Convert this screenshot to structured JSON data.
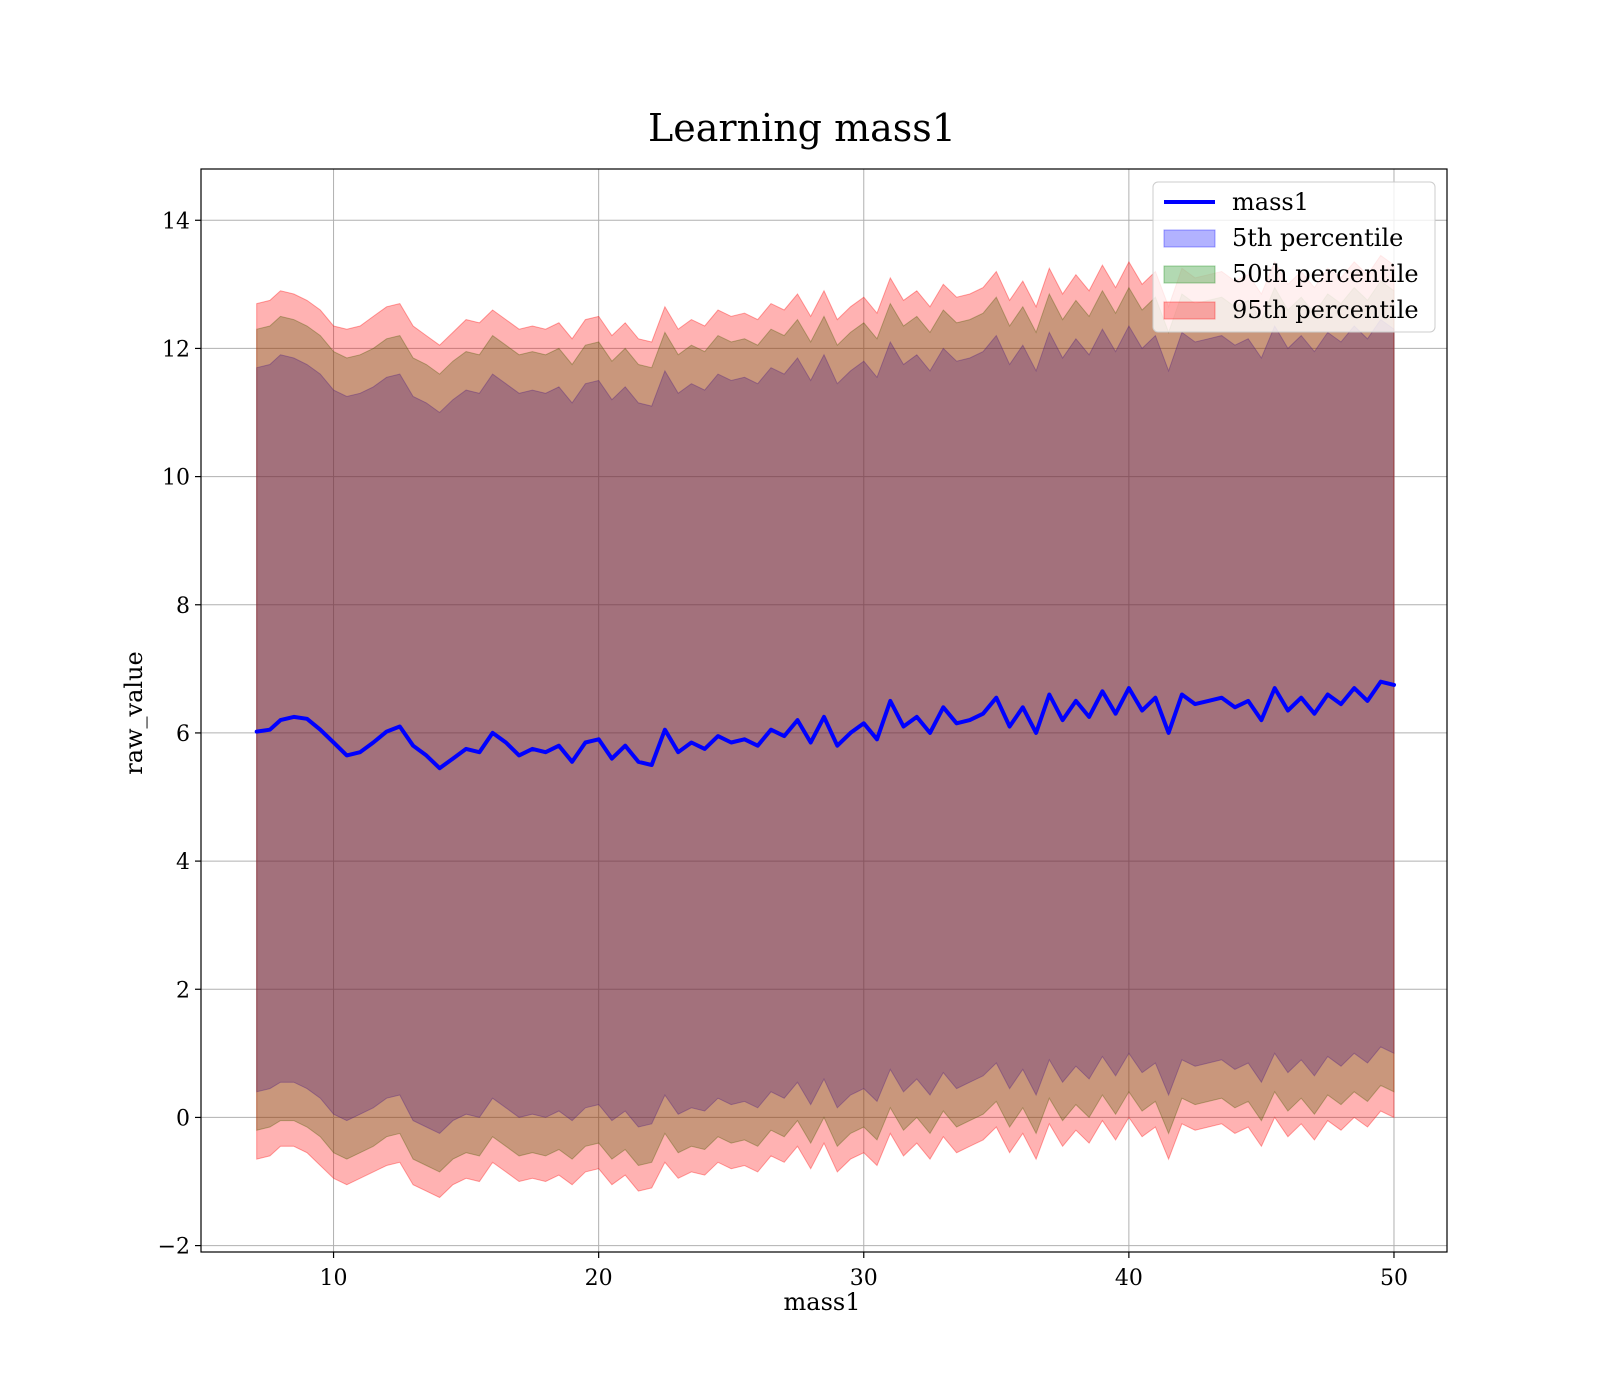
{
  "chart_data": {
    "type": "line",
    "title": "Learning mass1",
    "xlabel": "mass1",
    "ylabel": "raw_value",
    "xlim": [
      5,
      52
    ],
    "ylim": [
      -2.1,
      14.8
    ],
    "x_ticks": [
      10,
      20,
      30,
      40,
      50
    ],
    "x_tick_labels": [
      "10",
      "20",
      "30",
      "40",
      "50"
    ],
    "y_ticks": [
      -2,
      0,
      2,
      4,
      6,
      8,
      10,
      12,
      14
    ],
    "y_tick_labels": [
      "−2",
      "0",
      "2",
      "4",
      "6",
      "8",
      "10",
      "12",
      "14"
    ],
    "grid": true,
    "legend_position": "upper-right",
    "colors": {
      "line": "#0000ff",
      "p5_band": "#0000ff",
      "p50_band": "#008000",
      "p95_band": "#ff0000",
      "grid": "#b0b0b0"
    },
    "legend": [
      {
        "label": "mass1",
        "kind": "line",
        "color": "#0000ff"
      },
      {
        "label": "5th percentile",
        "kind": "patch",
        "color": "#0000ff"
      },
      {
        "label": "50th percentile",
        "kind": "patch",
        "color": "#008000"
      },
      {
        "label": "95th percentile",
        "kind": "patch",
        "color": "#ff0000"
      }
    ],
    "x": [
      7.1,
      7.6,
      8.0,
      8.5,
      9.0,
      9.5,
      10.0,
      10.5,
      11.0,
      11.5,
      12.0,
      12.5,
      13.0,
      13.5,
      14.0,
      14.5,
      15.0,
      15.5,
      16.0,
      16.5,
      17.0,
      17.5,
      18.0,
      18.5,
      19.0,
      19.5,
      20.0,
      20.5,
      21.0,
      21.5,
      22.0,
      22.5,
      23.0,
      23.5,
      24.0,
      24.5,
      25.0,
      25.5,
      26.0,
      26.5,
      27.0,
      27.5,
      28.0,
      28.5,
      29.0,
      29.5,
      30.0,
      30.5,
      31.0,
      31.5,
      32.0,
      32.5,
      33.0,
      33.5,
      34.0,
      34.5,
      35.0,
      35.5,
      36.0,
      36.5,
      37.0,
      37.5,
      38.0,
      38.5,
      39.0,
      39.5,
      40.0,
      40.5,
      41.0,
      41.5,
      42.0,
      42.5,
      43.0,
      43.5,
      44.0,
      44.5,
      45.0,
      45.5,
      46.0,
      46.5,
      47.0,
      47.5,
      48.0,
      48.5,
      49.0,
      49.5,
      50.0
    ],
    "series": [
      {
        "name": "mass1",
        "kind": "line",
        "values": [
          6.02,
          6.05,
          6.2,
          6.25,
          6.22,
          6.05,
          5.85,
          5.65,
          5.7,
          5.85,
          6.02,
          6.1,
          5.8,
          5.65,
          5.45,
          5.6,
          5.75,
          5.7,
          6.0,
          5.85,
          5.65,
          5.75,
          5.7,
          5.8,
          5.55,
          5.85,
          5.9,
          5.6,
          5.8,
          5.55,
          5.5,
          6.05,
          5.7,
          5.85,
          5.75,
          5.95,
          5.85,
          5.9,
          5.8,
          6.05,
          5.95,
          6.2,
          5.85,
          6.25,
          5.8,
          6.0,
          6.15,
          5.9,
          6.5,
          6.1,
          6.25,
          6.0,
          6.4,
          6.15,
          6.2,
          6.3,
          6.55,
          6.1,
          6.4,
          6.0,
          6.6,
          6.2,
          6.5,
          6.25,
          6.65,
          6.3,
          6.7,
          6.35,
          6.55,
          6.0,
          6.6,
          6.45,
          6.5,
          6.55,
          6.4,
          6.5,
          6.2,
          6.7,
          6.35,
          6.55,
          6.3,
          6.6,
          6.45,
          6.7,
          6.5,
          6.8,
          6.75
        ]
      },
      {
        "name": "5th percentile",
        "kind": "band",
        "lower": [
          0.4,
          0.45,
          0.55,
          0.55,
          0.45,
          0.3,
          0.05,
          -0.05,
          0.05,
          0.15,
          0.3,
          0.35,
          -0.05,
          -0.15,
          -0.25,
          -0.05,
          0.05,
          0.0,
          0.3,
          0.15,
          0.0,
          0.05,
          0.0,
          0.1,
          -0.05,
          0.15,
          0.2,
          -0.05,
          0.1,
          -0.15,
          -0.1,
          0.35,
          0.05,
          0.15,
          0.1,
          0.3,
          0.2,
          0.25,
          0.15,
          0.4,
          0.3,
          0.55,
          0.2,
          0.6,
          0.15,
          0.35,
          0.45,
          0.25,
          0.75,
          0.4,
          0.6,
          0.35,
          0.7,
          0.45,
          0.55,
          0.65,
          0.85,
          0.45,
          0.75,
          0.35,
          0.9,
          0.55,
          0.8,
          0.6,
          0.95,
          0.65,
          1.0,
          0.7,
          0.85,
          0.35,
          0.9,
          0.8,
          0.85,
          0.9,
          0.75,
          0.85,
          0.55,
          1.0,
          0.7,
          0.9,
          0.65,
          0.95,
          0.8,
          1.0,
          0.85,
          1.1,
          1.0
        ],
        "upper": [
          11.7,
          11.75,
          11.9,
          11.85,
          11.75,
          11.6,
          11.35,
          11.25,
          11.3,
          11.4,
          11.55,
          11.6,
          11.25,
          11.15,
          11.0,
          11.2,
          11.35,
          11.3,
          11.6,
          11.45,
          11.3,
          11.35,
          11.3,
          11.4,
          11.15,
          11.45,
          11.5,
          11.2,
          11.4,
          11.15,
          11.1,
          11.65,
          11.3,
          11.45,
          11.35,
          11.6,
          11.5,
          11.55,
          11.45,
          11.7,
          11.6,
          11.85,
          11.5,
          11.9,
          11.45,
          11.65,
          11.8,
          11.55,
          12.1,
          11.75,
          11.9,
          11.65,
          12.0,
          11.8,
          11.85,
          11.95,
          12.2,
          11.75,
          12.05,
          11.65,
          12.25,
          11.85,
          12.15,
          11.9,
          12.3,
          11.95,
          12.35,
          12.0,
          12.2,
          11.65,
          12.25,
          12.1,
          12.15,
          12.2,
          12.05,
          12.15,
          11.85,
          12.35,
          12.0,
          12.2,
          11.95,
          12.25,
          12.1,
          12.35,
          12.15,
          12.45,
          12.3
        ]
      },
      {
        "name": "50th percentile",
        "kind": "band",
        "lower": [
          -0.2,
          -0.15,
          -0.05,
          -0.05,
          -0.15,
          -0.3,
          -0.55,
          -0.65,
          -0.55,
          -0.45,
          -0.3,
          -0.25,
          -0.65,
          -0.75,
          -0.85,
          -0.65,
          -0.55,
          -0.6,
          -0.3,
          -0.45,
          -0.6,
          -0.55,
          -0.6,
          -0.5,
          -0.65,
          -0.45,
          -0.4,
          -0.65,
          -0.5,
          -0.75,
          -0.7,
          -0.25,
          -0.55,
          -0.45,
          -0.5,
          -0.3,
          -0.4,
          -0.35,
          -0.45,
          -0.2,
          -0.3,
          -0.05,
          -0.4,
          0.0,
          -0.45,
          -0.25,
          -0.15,
          -0.35,
          0.15,
          -0.2,
          0.0,
          -0.25,
          0.1,
          -0.15,
          -0.05,
          0.05,
          0.25,
          -0.15,
          0.15,
          -0.25,
          0.3,
          -0.05,
          0.2,
          0.0,
          0.35,
          0.05,
          0.4,
          0.1,
          0.25,
          -0.25,
          0.3,
          0.2,
          0.25,
          0.3,
          0.15,
          0.25,
          -0.05,
          0.4,
          0.1,
          0.3,
          0.05,
          0.35,
          0.2,
          0.4,
          0.25,
          0.5,
          0.4
        ],
        "upper": [
          12.3,
          12.35,
          12.5,
          12.45,
          12.35,
          12.2,
          11.95,
          11.85,
          11.9,
          12.0,
          12.15,
          12.2,
          11.85,
          11.75,
          11.6,
          11.8,
          11.95,
          11.9,
          12.2,
          12.05,
          11.9,
          11.95,
          11.9,
          12.0,
          11.75,
          12.05,
          12.1,
          11.8,
          12.0,
          11.75,
          11.7,
          12.25,
          11.9,
          12.05,
          11.95,
          12.2,
          12.1,
          12.15,
          12.05,
          12.3,
          12.2,
          12.45,
          12.1,
          12.5,
          12.05,
          12.25,
          12.4,
          12.15,
          12.7,
          12.35,
          12.5,
          12.25,
          12.6,
          12.4,
          12.45,
          12.55,
          12.8,
          12.35,
          12.65,
          12.25,
          12.85,
          12.45,
          12.75,
          12.5,
          12.9,
          12.55,
          12.95,
          12.6,
          12.8,
          12.25,
          12.85,
          12.7,
          12.75,
          12.8,
          12.65,
          12.75,
          12.45,
          12.95,
          12.6,
          12.8,
          12.55,
          12.85,
          12.7,
          12.95,
          12.75,
          13.05,
          12.9
        ]
      },
      {
        "name": "95th percentile",
        "kind": "band",
        "lower": [
          -0.65,
          -0.6,
          -0.45,
          -0.45,
          -0.55,
          -0.75,
          -0.95,
          -1.05,
          -0.95,
          -0.85,
          -0.75,
          -0.7,
          -1.05,
          -1.15,
          -1.25,
          -1.05,
          -0.95,
          -1.0,
          -0.7,
          -0.85,
          -1.0,
          -0.95,
          -1.0,
          -0.9,
          -1.05,
          -0.85,
          -0.8,
          -1.05,
          -0.9,
          -1.15,
          -1.1,
          -0.7,
          -0.95,
          -0.85,
          -0.9,
          -0.7,
          -0.8,
          -0.75,
          -0.85,
          -0.6,
          -0.7,
          -0.45,
          -0.8,
          -0.4,
          -0.85,
          -0.65,
          -0.55,
          -0.75,
          -0.25,
          -0.6,
          -0.4,
          -0.65,
          -0.3,
          -0.55,
          -0.45,
          -0.35,
          -0.15,
          -0.55,
          -0.25,
          -0.65,
          -0.1,
          -0.45,
          -0.2,
          -0.4,
          -0.05,
          -0.35,
          0.0,
          -0.3,
          -0.15,
          -0.65,
          -0.1,
          -0.2,
          -0.15,
          -0.1,
          -0.25,
          -0.15,
          -0.45,
          0.0,
          -0.3,
          -0.1,
          -0.35,
          -0.05,
          -0.2,
          0.0,
          -0.15,
          0.1,
          0.0
        ],
        "upper": [
          12.7,
          12.75,
          12.9,
          12.85,
          12.75,
          12.6,
          12.35,
          12.3,
          12.35,
          12.5,
          12.65,
          12.7,
          12.35,
          12.2,
          12.05,
          12.25,
          12.45,
          12.4,
          12.6,
          12.45,
          12.3,
          12.35,
          12.3,
          12.4,
          12.15,
          12.45,
          12.5,
          12.2,
          12.4,
          12.15,
          12.1,
          12.65,
          12.3,
          12.45,
          12.35,
          12.6,
          12.5,
          12.55,
          12.45,
          12.7,
          12.6,
          12.85,
          12.5,
          12.9,
          12.45,
          12.65,
          12.8,
          12.55,
          13.1,
          12.75,
          12.9,
          12.65,
          13.0,
          12.8,
          12.85,
          12.95,
          13.2,
          12.75,
          13.05,
          12.65,
          13.25,
          12.85,
          13.15,
          12.9,
          13.3,
          12.95,
          13.35,
          13.0,
          13.2,
          12.65,
          13.25,
          13.1,
          13.15,
          13.2,
          13.05,
          13.15,
          12.85,
          13.35,
          13.0,
          13.2,
          12.95,
          13.25,
          13.1,
          13.35,
          13.15,
          13.45,
          13.3
        ]
      }
    ]
  }
}
